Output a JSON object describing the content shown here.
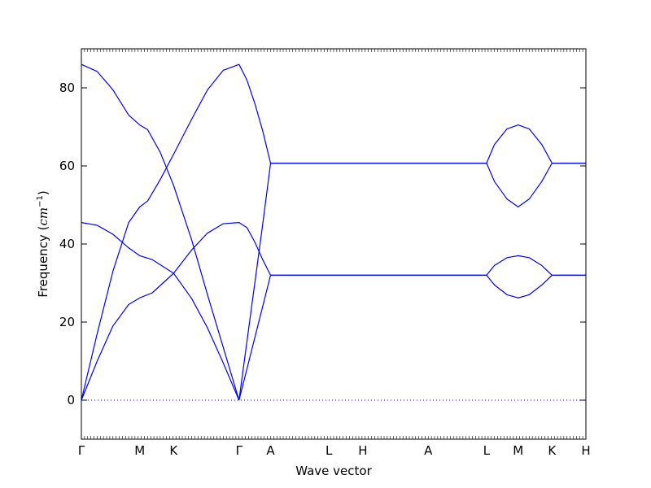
{
  "chart_data": {
    "type": "line",
    "xlabel": "Wave vector",
    "ylabel": "Frequency",
    "ylabel_unit_base": "cm",
    "ylabel_unit_exp": "−1",
    "ylim": [
      -10,
      90
    ],
    "yticks": [
      0,
      20,
      40,
      60,
      80
    ],
    "xlim": [
      0,
      3.2
    ],
    "xticks": [
      {
        "x": 0.0,
        "label": "Γ"
      },
      {
        "x": 0.37,
        "label": "M"
      },
      {
        "x": 0.585,
        "label": "K"
      },
      {
        "x": 1.0,
        "label": "Γ"
      },
      {
        "x": 1.2,
        "label": "A"
      },
      {
        "x": 1.57,
        "label": "L"
      },
      {
        "x": 1.785,
        "label": "H"
      },
      {
        "x": 2.2,
        "label": "A"
      },
      {
        "x": 2.57,
        "label": "L"
      },
      {
        "x": 2.77,
        "label": "M"
      },
      {
        "x": 2.985,
        "label": "K"
      },
      {
        "x": 3.2,
        "label": "H"
      }
    ],
    "zero_line": {
      "y": 0,
      "style": "dotted"
    },
    "color": "#0000ff",
    "series": [
      {
        "values": [
          [
            0,
            86
          ],
          [
            0.1,
            84.2
          ],
          [
            0.2,
            79.5
          ],
          [
            0.3,
            73
          ],
          [
            0.37,
            70.5
          ],
          [
            0.42,
            69.3
          ],
          [
            0.5,
            63.5
          ],
          [
            0.585,
            55
          ],
          [
            0.7,
            41
          ],
          [
            0.8,
            27
          ],
          [
            0.9,
            13.5
          ],
          [
            1.0,
            0
          ]
        ]
      },
      {
        "values": [
          [
            0,
            0
          ],
          [
            0.1,
            17
          ],
          [
            0.2,
            33
          ],
          [
            0.3,
            45.5
          ],
          [
            0.37,
            49.5
          ],
          [
            0.42,
            51
          ],
          [
            0.5,
            56.5
          ],
          [
            0.585,
            63
          ],
          [
            0.7,
            72
          ],
          [
            0.8,
            79.5
          ],
          [
            0.9,
            84.5
          ],
          [
            1.0,
            86
          ],
          [
            1.05,
            82
          ],
          [
            1.1,
            76
          ],
          [
            1.15,
            69
          ],
          [
            1.2,
            60.7
          ],
          [
            2.57,
            60.7
          ],
          [
            2.62,
            65.5
          ],
          [
            2.7,
            69.5
          ],
          [
            2.77,
            70.5
          ],
          [
            2.84,
            69.5
          ],
          [
            2.92,
            65.5
          ],
          [
            2.985,
            60.7
          ],
          [
            3.2,
            60.7
          ]
        ]
      },
      {
        "values": [
          [
            1.0,
            0
          ],
          [
            1.05,
            15
          ],
          [
            1.1,
            30
          ],
          [
            1.15,
            45
          ],
          [
            1.2,
            60.7
          ],
          [
            2.57,
            60.7
          ],
          [
            2.62,
            56
          ],
          [
            2.7,
            51.5
          ],
          [
            2.77,
            49.5
          ],
          [
            2.84,
            51.5
          ],
          [
            2.92,
            56
          ],
          [
            2.985,
            60.7
          ],
          [
            3.2,
            60.7
          ]
        ]
      },
      {
        "values": [
          [
            0,
            45.5
          ],
          [
            0.1,
            44.8
          ],
          [
            0.2,
            42.5
          ],
          [
            0.3,
            39
          ],
          [
            0.37,
            37
          ],
          [
            0.45,
            36
          ],
          [
            0.585,
            32.5
          ],
          [
            0.7,
            26
          ],
          [
            0.8,
            18.5
          ],
          [
            0.9,
            9.5
          ],
          [
            1.0,
            0
          ]
        ]
      },
      {
        "values": [
          [
            0,
            0
          ],
          [
            0.1,
            10
          ],
          [
            0.2,
            19
          ],
          [
            0.3,
            24.5
          ],
          [
            0.37,
            26.2
          ],
          [
            0.45,
            27.5
          ],
          [
            0.585,
            32.5
          ],
          [
            0.7,
            38.5
          ],
          [
            0.8,
            42.8
          ],
          [
            0.9,
            45.2
          ],
          [
            1.0,
            45.5
          ],
          [
            1.05,
            44.2
          ],
          [
            1.1,
            40.5
          ],
          [
            1.15,
            36
          ],
          [
            1.2,
            32
          ],
          [
            2.57,
            32
          ],
          [
            2.62,
            34.5
          ],
          [
            2.7,
            36.5
          ],
          [
            2.77,
            37
          ],
          [
            2.84,
            36.5
          ],
          [
            2.92,
            34.5
          ],
          [
            2.985,
            32
          ],
          [
            3.2,
            32
          ]
        ]
      },
      {
        "values": [
          [
            1.0,
            0
          ],
          [
            1.05,
            8
          ],
          [
            1.1,
            16
          ],
          [
            1.15,
            24
          ],
          [
            1.2,
            32
          ],
          [
            2.57,
            32
          ],
          [
            2.62,
            29.5
          ],
          [
            2.7,
            27
          ],
          [
            2.77,
            26.2
          ],
          [
            2.84,
            27
          ],
          [
            2.92,
            29.5
          ],
          [
            2.985,
            32
          ],
          [
            3.2,
            32
          ]
        ]
      }
    ]
  }
}
